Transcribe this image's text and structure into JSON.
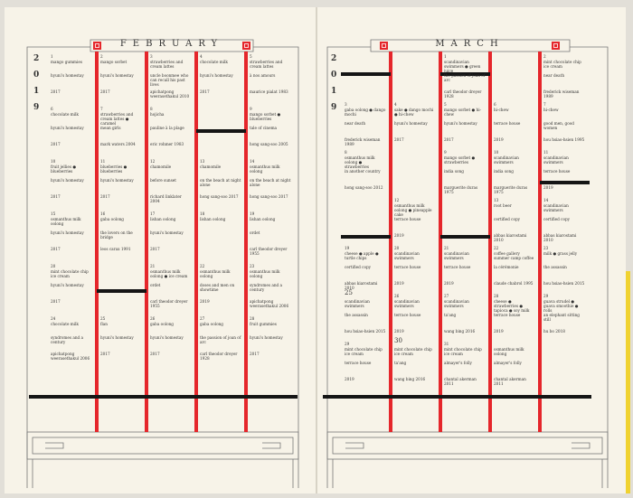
{
  "pages": [
    {
      "month": "FEBRUARY",
      "year": [
        "2",
        "0",
        "1",
        "9"
      ],
      "rows": [
        [
          {
            "day": "1",
            "snack": "mango gummies",
            "film": "hyuni's homestay",
            "credit": "2017"
          },
          {
            "day": "2",
            "snack": "mango sorbet",
            "film": "hyuni's homestay",
            "credit": "2017"
          },
          {
            "day": "3",
            "snack": "strawberries and cream lattes",
            "film": "uncle boonmee who can recall his past lives",
            "credit": "apichatpong weerasethakul 2010"
          },
          {
            "day": "4",
            "snack": "chocolate milk",
            "film": "hyuni's homestay",
            "credit": "2017"
          },
          {
            "day": "5",
            "snack": "strawberries and cream lattes",
            "film": "à nos amours",
            "credit": "maurice pialat 1983"
          }
        ],
        [
          {
            "day": "6",
            "snack": "chocolate milk",
            "film": "hyuni's homestay",
            "credit": "2017"
          },
          {
            "day": "7",
            "snack": "strawberries and cream lattes ● caramel",
            "film": "mean girls",
            "credit": "mark waters 2004"
          },
          {
            "day": "8",
            "snack": "hojicha",
            "film": "pauline à la plage",
            "credit": "eric rohmer 1983"
          },
          null,
          {
            "day": "9",
            "snack": "mango sorbet ● blueberries",
            "film": "tale of cinema",
            "credit": "hong sang-soo 2005"
          }
        ],
        [
          {
            "day": "10",
            "snack": "fruit jellies ● blueberries",
            "film": "hyuni's homestay",
            "credit": "2017"
          },
          {
            "day": "11",
            "snack": "blueberries ● blueberries",
            "film": "hyuni's homestay",
            "credit": "2017"
          },
          {
            "day": "12",
            "snack": "chamomile",
            "film": "before sunset",
            "credit": "richard linklater 2004"
          },
          {
            "day": "13",
            "snack": "chamomile",
            "film": "on the beach at night alone",
            "credit": "hong sang-soo 2017"
          },
          {
            "day": "14",
            "snack": "osmanthus milk oolong",
            "film": "on the beach at night alone",
            "credit": "hong sang-soo 2017"
          }
        ],
        [
          {
            "day": "15",
            "snack": "osmanthus milk oolong",
            "film": "hyuni's homestay",
            "credit": "2017"
          },
          {
            "day": "16",
            "snack": "gaba oolong",
            "film": "the lovers on the bridge",
            "credit": "leos carax 1991"
          },
          {
            "day": "17",
            "snack": "lishan oolong",
            "film": "hyuni's homestay",
            "credit": "2017"
          },
          {
            "day": "18",
            "snack": "lishan oolong"
          },
          {
            "day": "19",
            "snack": "lishan oolong",
            "film": "ordet",
            "credit": "carl theodor dreyer 1955"
          }
        ],
        [
          {
            "day": "20",
            "snack": "mint chocolate chip ice cream",
            "film": "hyuni's homestay",
            "credit": "2017"
          },
          null,
          {
            "day": "21",
            "snack": "osmanthus milk oolong ● ice cream",
            "film": "ordet",
            "credit": "carl theodor dreyer 1955"
          },
          {
            "day": "22",
            "snack": "osmanthus milk oolong",
            "film": "doses and men on showtime",
            "credit": "2019"
          },
          {
            "day": "23",
            "snack": "osmanthus milk oolong",
            "film": "syndromes and a century",
            "credit": "apichatpong weerasethakul 2006"
          }
        ],
        [
          {
            "day": "24",
            "snack": "chocolate milk",
            "film": "syndromes and a century",
            "credit": "apichatpong weerasethakul 2006"
          },
          {
            "day": "25",
            "snack": "flan",
            "film": "hyuni's homestay",
            "credit": "2017"
          },
          {
            "day": "26",
            "snack": "gaba oolong",
            "film": "hyuni's homestay",
            "credit": "2017"
          },
          {
            "day": "27",
            "snack": "gaba oolong",
            "film": "the passion of joan of arc",
            "credit": "carl theodor dreyer 1928"
          },
          {
            "day": "28",
            "snack": "fruit gummies",
            "film": "hyuni's homestay",
            "credit": "2017"
          }
        ]
      ]
    },
    {
      "month": "MARCH",
      "year": [
        "2",
        "0",
        "1",
        "9"
      ],
      "rows": [
        [
          null,
          null,
          {
            "day": "1",
            "snack": "scandinavian swimmers ● green juice",
            "film": "the passion of joan of arc",
            "credit": "carl theodor dreyer 1928"
          },
          null,
          {
            "day": "2",
            "snack": "mint chocolate chip ice cream",
            "film": "near death",
            "credit": "frederick wiseman 1989"
          }
        ],
        [
          {
            "day": "3",
            "snack": "gaba oolong ● dango mochi",
            "film": "near death",
            "credit": "frederick wiseman 1989"
          },
          {
            "day": "4",
            "snack": "sake ● dango mochi ● hi-chew",
            "film": "hyuni's homestay",
            "credit": "2017"
          },
          {
            "day": "5",
            "snack": "mango sorbet ● hi-chew",
            "film": "hyuni's homestay",
            "credit": "2017"
          },
          {
            "day": "6",
            "snack": "hi-chew",
            "film": "terrace house",
            "credit": "2019"
          },
          {
            "day": "7",
            "snack": "hi-chew",
            "film": "good men, good women",
            "credit": "hou hsiao-hsien 1995"
          }
        ],
        [
          {
            "day": "8",
            "snack": "osmanthus milk oolong ● strawberries",
            "film": "in another country",
            "credit": "hong sang-soo 2012"
          },
          null,
          {
            "day": "9",
            "snack": "mango sorbet ● strawberries",
            "film": "india song",
            "credit": "marguerite duras 1975"
          },
          {
            "day": "10",
            "snack": "scandinavian swimmers",
            "film": "india song",
            "credit": "marguerite duras 1975"
          },
          {
            "day": "11",
            "snack": "scandinavian swimmers",
            "film": "terrace house",
            "credit": "2019"
          }
        ],
        [
          null,
          {
            "day": "12",
            "snack": "osmanthus milk oolong ● pineapple cake",
            "film": "terrace house",
            "credit": "2019"
          },
          null,
          {
            "day": "13",
            "snack": "root beer",
            "film": "certified copy",
            "credit": "abbas kiarostami 2010"
          },
          {
            "day": "14",
            "snack": "scandinavian swimmers",
            "film": "certified copy",
            "credit": "abbas kiarostami 2010"
          }
        ],
        [
          {
            "day": "19",
            "snack": "cheese ● apple ● turtle chips",
            "film": "certified copy",
            "credit": "abbas kiarostami 2010"
          },
          {
            "day": "20",
            "snack": "scandinavian swimmers",
            "film": "terrace house",
            "credit": "2019"
          },
          {
            "day": "21",
            "snack": "scandinavian swimmers",
            "film": "terrace house",
            "credit": "2019"
          },
          {
            "day": "22",
            "snack": "coffee gallery summer camp coffee",
            "film": "la cérémonie",
            "credit": "claude chabrol 1995"
          },
          {
            "day": "23",
            "snack": "milk ● grass jelly",
            "film": "the assassin",
            "credit": "hou hsiao-hsien 2015"
          }
        ],
        [
          {
            "day": "25",
            "snack": "scandinavian swimmers",
            "film": "the assassin",
            "credit": "hou hsiao-hsien 2015"
          },
          {
            "day": "26",
            "snack": "scandinavian swimmers",
            "film": "terrace house",
            "credit": "2019"
          },
          {
            "day": "27",
            "snack": "scandinavian swimmers",
            "film": "ta'ang",
            "credit": "wang bing 2016"
          },
          {
            "day": "28",
            "snack": "cheese ● strawberries ● tapioca ● soy milk",
            "film": "terrace house",
            "credit": "2019"
          },
          {
            "day": "29",
            "snack": "guava strudel ● guava smoothie ● rolls",
            "film": "an elephant sitting still",
            "credit": "hu bo 2018"
          }
        ],
        [
          {
            "day": "29",
            "snack": "mint chocolate chip ice cream",
            "film": "terrace house",
            "credit": "2019"
          },
          {
            "day": "30",
            "snack": "mint chocolate chip ice cream",
            "film": "ta'ang",
            "credit": "wang bing 2016"
          },
          {
            "day": "31",
            "snack": "mint chocolate chip ice cream",
            "film": "almayer's folly",
            "credit": "chantal akerman 2011"
          },
          {
            "snack": "osmanthus milk oolong",
            "film": "almayer's folly",
            "credit": "chantal akerman 2011"
          },
          null
        ]
      ]
    }
  ]
}
